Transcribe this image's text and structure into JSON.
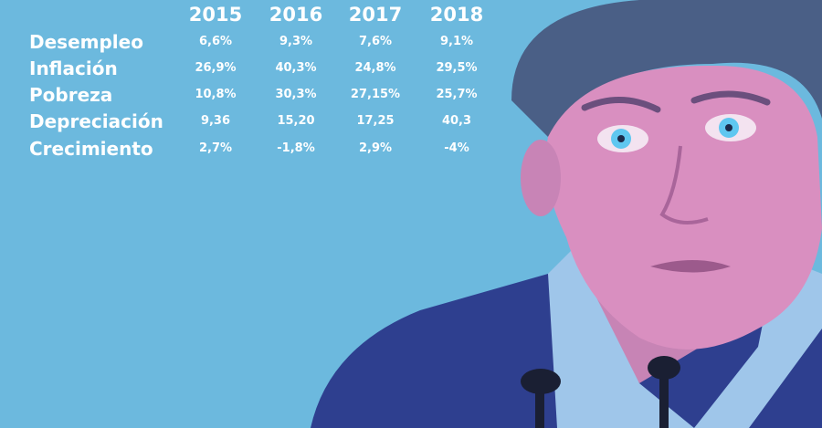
{
  "table": {
    "years": [
      "2015",
      "2016",
      "2017",
      "2018"
    ],
    "rows": [
      {
        "label": "Desempleo",
        "values": [
          "6,6%",
          "9,3%",
          "7,6%",
          "9,1%"
        ]
      },
      {
        "label": "Inflación",
        "values": [
          "26,9%",
          "40,3%",
          "24,8%",
          "29,5%"
        ]
      },
      {
        "label": "Pobreza",
        "values": [
          "10,8%",
          "30,3%",
          "27,15%",
          "25,7%"
        ]
      },
      {
        "label": "Depreciación",
        "values": [
          "9,36",
          "15,20",
          "17,25",
          "40,3"
        ]
      },
      {
        "label": "Crecimiento",
        "values": [
          "2,7%",
          "-1,8%",
          "2,9%",
          "-4%"
        ]
      }
    ]
  },
  "colors": {
    "background": "#6cb9de",
    "text": "#ffffff",
    "skin": "#d98fc0",
    "hair": "#4a5f86",
    "suit": "#2e3f8f",
    "shirt": "#9fc6ea",
    "eye": "#5fc7f0"
  }
}
